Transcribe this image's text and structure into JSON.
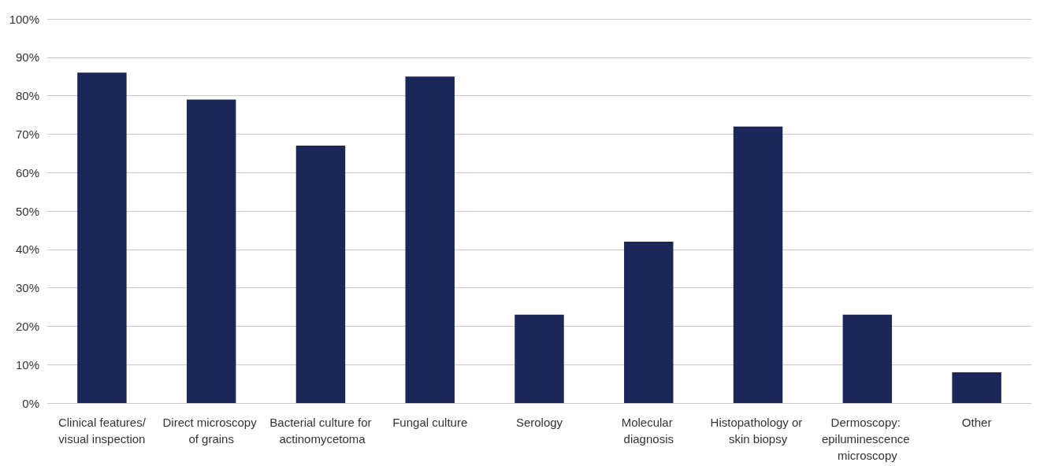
{
  "chart_data": {
    "type": "bar",
    "categories": [
      "Clinical features/visual inspection",
      "Direct microscopy of grains",
      "Bacterial culture for actinomycetoma",
      "Fungal culture",
      "Serology",
      "Molecular diagnosis",
      "Histopathology or skin biopsy",
      "Dermoscopy: epiluminescence microscopy",
      "Other"
    ],
    "values": [
      86,
      79,
      67,
      85,
      23,
      42,
      72,
      23,
      8
    ],
    "color": "#1b2659",
    "ylim": [
      0,
      100
    ],
    "yticks": [
      {
        "value": 0,
        "label": "0%"
      },
      {
        "value": 10,
        "label": "10%"
      },
      {
        "value": 20,
        "label": "20%"
      },
      {
        "value": 30,
        "label": "30%"
      },
      {
        "value": 40,
        "label": "40%"
      },
      {
        "value": 50,
        "label": "50%"
      },
      {
        "value": 60,
        "label": "60%"
      },
      {
        "value": 70,
        "label": "70%"
      },
      {
        "value": 80,
        "label": "80%"
      },
      {
        "value": 90,
        "label": "90%"
      },
      {
        "value": 100,
        "label": "100%"
      }
    ],
    "grid": "y"
  }
}
